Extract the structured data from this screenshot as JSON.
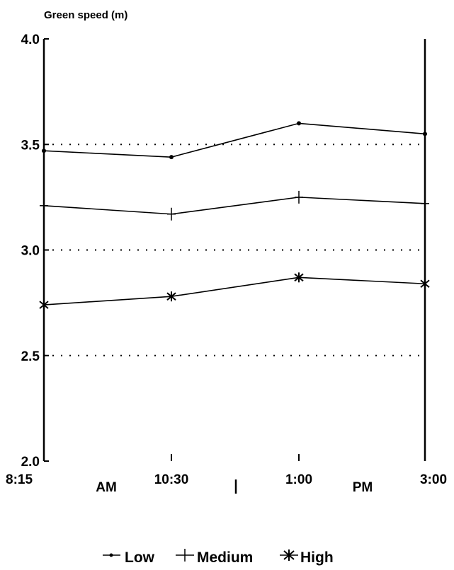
{
  "chart_data": {
    "type": "line",
    "title": "Green speed (m)",
    "xlabel": "",
    "ylabel": "",
    "x": [
      "8:15",
      "10:30",
      "1:00",
      "3:00"
    ],
    "periods": [
      "AM",
      "PM"
    ],
    "ylim": [
      2.0,
      4.0
    ],
    "yticks": [
      "2.0",
      "2.5",
      "3.0",
      "3.5",
      "4.0"
    ],
    "grid_values": [
      2.5,
      3.0,
      3.5
    ],
    "grid": "dotted horizontal",
    "legend_position": "bottom",
    "series": [
      {
        "name": "Low",
        "marker": "dot",
        "values": [
          3.47,
          3.44,
          3.6,
          3.55
        ]
      },
      {
        "name": "Medium",
        "marker": "plus",
        "values": [
          3.21,
          3.17,
          3.25,
          3.22
        ]
      },
      {
        "name": "High",
        "marker": "asterisk",
        "values": [
          2.74,
          2.78,
          2.87,
          2.84
        ]
      }
    ]
  }
}
